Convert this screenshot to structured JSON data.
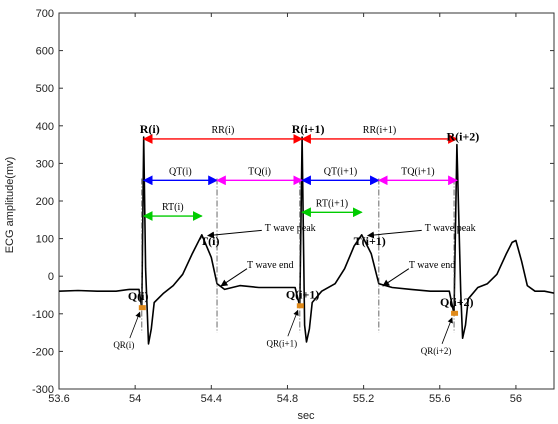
{
  "chart_data": {
    "type": "line",
    "xlabel": "sec",
    "ylabel": "ECG amplitude(mv)",
    "xlim": [
      53.6,
      56.2
    ],
    "ylim": [
      -300,
      700
    ],
    "xticks": [
      "53.6",
      "54",
      "54.4",
      "54.8",
      "55.2",
      "55.6",
      "56"
    ],
    "yticks": [
      "-300",
      "-200",
      "-100",
      "0",
      "100",
      "200",
      "300",
      "400",
      "500",
      "600",
      "700"
    ],
    "grid": false,
    "series": [
      {
        "color": "#000000",
        "x": [
          53.6,
          53.7,
          53.8,
          53.9,
          53.97,
          54.02,
          54.035,
          54.045,
          54.055,
          54.07,
          54.085,
          54.1,
          54.15,
          54.2,
          54.25,
          54.3,
          54.35,
          54.4,
          54.43,
          54.47,
          54.55,
          54.65,
          54.75,
          54.84,
          54.865,
          54.877,
          54.89,
          54.9,
          54.915,
          54.93,
          54.98,
          55.05,
          55.1,
          55.15,
          55.19,
          55.24,
          55.28,
          55.35,
          55.45,
          55.55,
          55.65,
          55.675,
          55.69,
          55.71,
          55.72,
          55.735,
          55.75,
          55.8,
          55.85,
          55.9,
          55.95,
          55.98,
          56.0,
          56.03,
          56.06,
          56.1,
          56.15,
          56.2
        ],
        "y": [
          -40,
          -38,
          -40,
          -40,
          -35,
          -35,
          -85,
          370,
          20,
          -180,
          -140,
          -70,
          -45,
          -25,
          5,
          60,
          110,
          50,
          -20,
          -35,
          -25,
          -30,
          -30,
          -30,
          -80,
          370,
          -130,
          -175,
          -140,
          -70,
          -40,
          -20,
          20,
          80,
          110,
          60,
          -20,
          -30,
          -35,
          -40,
          -40,
          -100,
          350,
          -40,
          -165,
          -130,
          -60,
          -30,
          -20,
          5,
          60,
          90,
          95,
          40,
          -25,
          -40,
          -40,
          -45
        ]
      }
    ],
    "peaks": [
      {
        "x": 54.045,
        "y": 370,
        "label": "R(i)"
      },
      {
        "x": 54.877,
        "y": 370,
        "label": "R(i+1)"
      },
      {
        "x": 55.69,
        "y": 350,
        "label": "R(i+2)"
      }
    ],
    "intervals": [
      {
        "name": "RR(i)",
        "from": 54.045,
        "to": 54.877,
        "y": 365,
        "color": "#ff0000"
      },
      {
        "name": "RR(i+1)",
        "from": 54.877,
        "to": 55.69,
        "y": 365,
        "color": "#ff0000"
      },
      {
        "name": "QT(i)",
        "from": 54.045,
        "to": 54.43,
        "y": 255,
        "color": "#0000ff"
      },
      {
        "name": "TQ(i)",
        "from": 54.43,
        "to": 54.877,
        "y": 255,
        "color": "#ff00ff"
      },
      {
        "name": "QT(i+1)",
        "from": 54.877,
        "to": 55.28,
        "y": 255,
        "color": "#0000ff"
      },
      {
        "name": "TQ(i+1)",
        "from": 55.28,
        "to": 55.69,
        "y": 255,
        "color": "#ff00ff"
      },
      {
        "name": "RT(i)",
        "from": 54.045,
        "to": 54.35,
        "y": 160,
        "color": "#00cc00"
      },
      {
        "name": "RT(i+1)",
        "from": 54.877,
        "to": 55.19,
        "y": 170,
        "color": "#00cc00"
      }
    ],
    "q_markers": [
      {
        "x": 54.035,
        "y": -85
      },
      {
        "x": 54.865,
        "y": -80
      },
      {
        "x": 55.675,
        "y": -100
      }
    ],
    "vlines": [
      54.035,
      54.43,
      54.865,
      55.28,
      55.675
    ],
    "annotations": {
      "t_labels": [
        "T(i)",
        "T(i+1)"
      ],
      "t_wave_peak": "T wave peak",
      "t_wave_end": "T wave end",
      "q_labels": [
        "Q(i)",
        "Q(i+1)",
        "Q(i+2)"
      ],
      "qr_labels": [
        "QR(i)",
        "QR(i+1)",
        "QR(i+2)"
      ]
    }
  }
}
